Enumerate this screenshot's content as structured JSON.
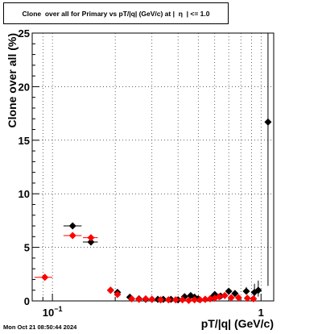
{
  "title": "Clone  over all for Primary vs pT/|q| (GeV/c) at |  η  | <= 1.0",
  "footer": "Mon Oct 21 08:50:44 2024",
  "colors": {
    "series_black": "#000000",
    "series_red": "#ff0000",
    "grid": "#000000"
  },
  "chart_data": {
    "type": "scatter",
    "xscale": "log",
    "xlim": [
      0.08,
      1.15
    ],
    "ylim": [
      0,
      25
    ],
    "grid": true,
    "xlabel": "pT/|q| (GeV/c)",
    "ylabel": "Clone  over all (%)",
    "xticks": [
      {
        "value": 0.1,
        "base": "10",
        "exp": "−1"
      },
      {
        "value": 1.0,
        "base": "1",
        "exp": ""
      }
    ],
    "yticks": [
      0,
      5,
      10,
      15,
      20,
      25
    ],
    "series": [
      {
        "color": "#000000",
        "points": [
          {
            "x": 0.125,
            "xlo": 0.113,
            "xhi": 0.138,
            "y": 7.0,
            "ylo": 6.7,
            "yhi": 7.3
          },
          {
            "x": 0.153,
            "xlo": 0.14,
            "xhi": 0.165,
            "y": 5.5,
            "ylo": 5.2,
            "yhi": 5.9
          },
          {
            "x": 0.19,
            "y": 1.0
          },
          {
            "x": 0.205,
            "y": 0.8
          },
          {
            "x": 0.235,
            "y": 0.35
          },
          {
            "x": 0.26,
            "y": 0.2
          },
          {
            "x": 0.28,
            "y": 0.15
          },
          {
            "x": 0.3,
            "y": 0.15
          },
          {
            "x": 0.32,
            "y": 0.15
          },
          {
            "x": 0.34,
            "y": 0.15
          },
          {
            "x": 0.37,
            "y": 0.15
          },
          {
            "x": 0.4,
            "y": 0.1
          },
          {
            "x": 0.43,
            "y": 0.4
          },
          {
            "x": 0.46,
            "y": 0.5
          },
          {
            "x": 0.48,
            "y": 0.35
          },
          {
            "x": 0.5,
            "y": 0.2
          },
          {
            "x": 0.54,
            "y": 0.15
          },
          {
            "x": 0.58,
            "y": 0.3
          },
          {
            "x": 0.6,
            "y": 0.6
          },
          {
            "x": 0.64,
            "y": 0.45
          },
          {
            "x": 0.7,
            "y": 0.9
          },
          {
            "x": 0.75,
            "y": 0.7
          },
          {
            "x": 0.85,
            "y": 0.9,
            "ylo": 0.6,
            "yhi": 1.3
          },
          {
            "x": 0.93,
            "y": 0.8,
            "ylo": 0.4,
            "yhi": 1.6
          },
          {
            "x": 0.97,
            "y": 1.0,
            "ylo": 0.4,
            "yhi": 1.9
          },
          {
            "x": 1.08,
            "y": 16.7,
            "ylo": 1.4,
            "yhi": 25
          }
        ]
      },
      {
        "color": "#ff0000",
        "points": [
          {
            "x": 0.092,
            "xlo": 0.082,
            "xhi": 0.1,
            "y": 2.2
          },
          {
            "x": 0.125,
            "xlo": 0.113,
            "xhi": 0.138,
            "y": 6.1
          },
          {
            "x": 0.153,
            "xlo": 0.14,
            "xhi": 0.165,
            "y": 5.9
          },
          {
            "x": 0.19,
            "y": 1.0
          },
          {
            "x": 0.205,
            "y": 0.6
          },
          {
            "x": 0.24,
            "y": 0.2
          },
          {
            "x": 0.26,
            "y": 0.15
          },
          {
            "x": 0.28,
            "y": 0.2
          },
          {
            "x": 0.3,
            "y": 0.15
          },
          {
            "x": 0.33,
            "y": 0.1
          },
          {
            "x": 0.36,
            "y": 0.1
          },
          {
            "x": 0.39,
            "y": 0.1
          },
          {
            "x": 0.42,
            "y": 0.1
          },
          {
            "x": 0.45,
            "y": 0.05
          },
          {
            "x": 0.48,
            "y": 0.1
          },
          {
            "x": 0.51,
            "y": 0.1
          },
          {
            "x": 0.54,
            "y": 0.15
          },
          {
            "x": 0.57,
            "y": 0.2
          },
          {
            "x": 0.6,
            "y": 0.25
          },
          {
            "x": 0.63,
            "y": 0.4
          },
          {
            "x": 0.67,
            "y": 0.5
          },
          {
            "x": 0.72,
            "y": 0.3
          },
          {
            "x": 0.78,
            "y": 0.3
          },
          {
            "x": 0.86,
            "y": 0.25
          },
          {
            "x": 0.92,
            "y": 0.2
          }
        ]
      }
    ]
  }
}
